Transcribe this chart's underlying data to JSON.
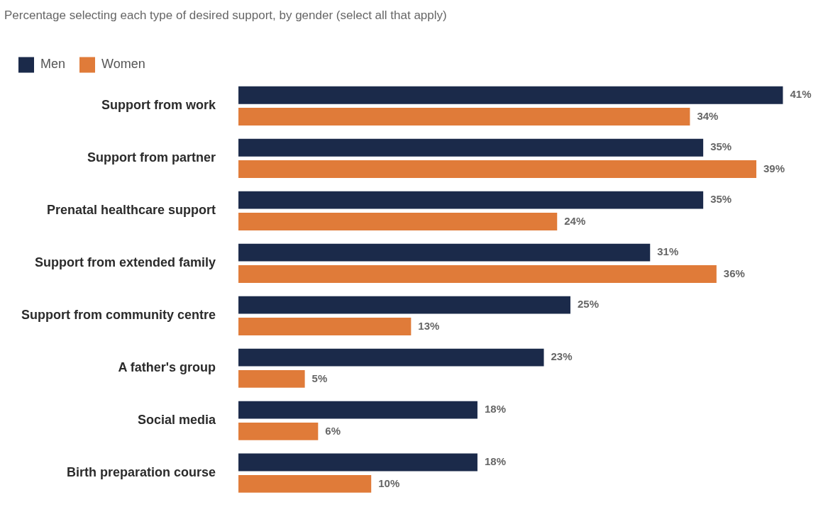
{
  "chart_data": {
    "type": "bar",
    "orientation": "horizontal",
    "title": "Percentage selecting each type of desired support, by gender (select all that apply)",
    "categories": [
      "Support from work",
      "Support from partner",
      "Prenatal healthcare support",
      "Support from extended family",
      "Support from community centre",
      "A father's group",
      "Social media",
      "Birth preparation course"
    ],
    "series": [
      {
        "name": "Men",
        "color": "#1b2a4a",
        "values": [
          41,
          35,
          35,
          31,
          25,
          23,
          18,
          18
        ],
        "value_labels": [
          "41%",
          "35%",
          "35%",
          "31%",
          "25%",
          "23%",
          "18%",
          "18%"
        ]
      },
      {
        "name": "Women",
        "color": "#e07b39",
        "values": [
          34,
          39,
          24,
          36,
          13,
          5,
          6,
          10
        ],
        "value_labels": [
          "34%",
          "39%",
          "24%",
          "36%",
          "13%",
          "5%",
          "6%",
          "10%"
        ]
      }
    ],
    "legend": "top left"
  }
}
